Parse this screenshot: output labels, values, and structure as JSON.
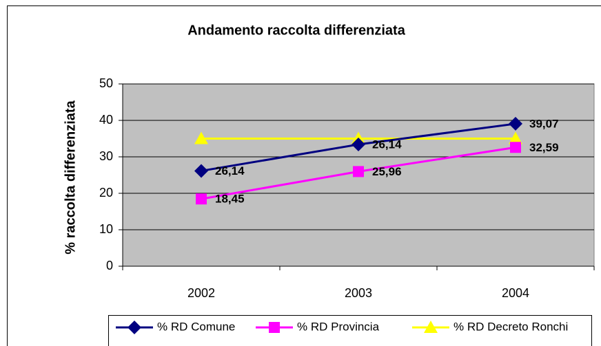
{
  "chart_data": {
    "type": "line",
    "title": "Andamento raccolta differenziata",
    "y_label": "% raccolta differenziata",
    "categories": [
      "2002",
      "2003",
      "2004"
    ],
    "series": [
      {
        "name": "% RD Comune",
        "color": "#000080",
        "marker": "diamond",
        "values": [
          26.14,
          33.4,
          39.07
        ],
        "value_labels": [
          "26,14",
          null,
          "39,07"
        ]
      },
      {
        "name": "% RD Provincia",
        "color": "#ff00ff",
        "marker": "square",
        "values": [
          18.45,
          25.96,
          32.59
        ],
        "value_labels": [
          "18,45",
          "25,96",
          "32,59"
        ]
      },
      {
        "name": "% RD Decreto Ronchi",
        "color": "#ffff00",
        "marker": "triangle",
        "values": [
          35,
          35,
          35
        ],
        "value_labels": [
          null,
          null,
          null
        ]
      }
    ],
    "annotations": [
      "26,14"
    ],
    "ylim": [
      0,
      50
    ],
    "yticks": [
      0,
      10,
      20,
      30,
      40,
      50
    ],
    "grid": true,
    "legend": "bottom"
  }
}
